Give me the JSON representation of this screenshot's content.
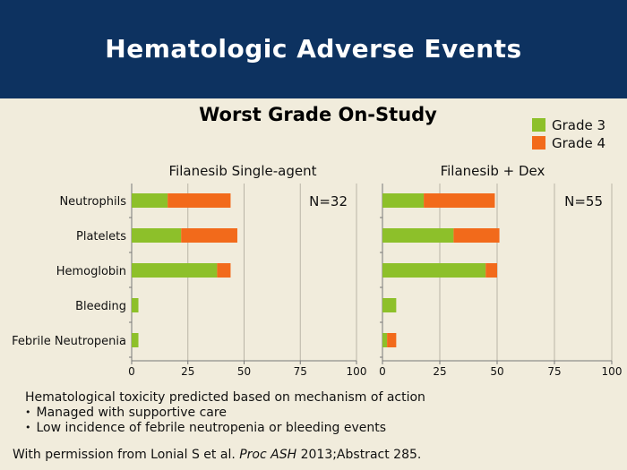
{
  "slide": {
    "title": "Hematologic Adverse Events",
    "subtitle": "Worst Grade On-Study"
  },
  "chart_data": {
    "type": "bar",
    "orientation": "horizontal",
    "stacked": true,
    "categories": [
      "Neutrophils",
      "Platelets",
      "Hemoglobin",
      "Bleeding",
      "Febrile Neutropenia"
    ],
    "xlim": [
      0,
      100
    ],
    "xticks": [
      "0",
      "25",
      "50",
      "75",
      "100"
    ],
    "grid": true,
    "legend_position": "top-right",
    "legend": [
      {
        "name": "Grade 3",
        "color": "#8dc02a"
      },
      {
        "name": "Grade 4",
        "color": "#f26a1b"
      }
    ],
    "panels": [
      {
        "title": "Filanesib Single-agent",
        "n_label": "N=32",
        "series": [
          {
            "name": "Grade 3",
            "values": [
              16,
              22,
              38,
              3,
              3
            ]
          },
          {
            "name": "Grade 4",
            "values": [
              28,
              25,
              6,
              0,
              0
            ]
          }
        ]
      },
      {
        "title": "Filanesib + Dex",
        "n_label": "N=55",
        "series": [
          {
            "name": "Grade 3",
            "values": [
              18,
              31,
              45,
              6,
              2
            ]
          },
          {
            "name": "Grade 4",
            "values": [
              31,
              20,
              5,
              0,
              4
            ]
          }
        ]
      }
    ]
  },
  "notes": {
    "heading": "Hematological toxicity predicted based on mechanism of action",
    "bullets": [
      "Managed with supportive care",
      "Low incidence of febrile neutropenia or bleeding events"
    ]
  },
  "credit": {
    "prefix": "With permission from Lonial S et al. ",
    "journal": "Proc ASH",
    "suffix": " 2013;Abstract 285."
  }
}
